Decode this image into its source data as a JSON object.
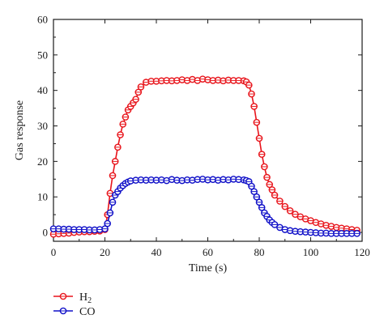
{
  "chart_data": {
    "type": "line",
    "title": "",
    "xlabel": "Time (s)",
    "ylabel": "Gas response",
    "xlim": [
      0,
      120
    ],
    "ylim": [
      0,
      60
    ],
    "x_ticks": [
      0,
      20,
      40,
      60,
      80,
      100,
      120
    ],
    "y_ticks": [
      0,
      10,
      20,
      30,
      40,
      50,
      60
    ],
    "grid": false,
    "legend_position": "bottom-left, below plot",
    "series": [
      {
        "name": "H",
        "name_subscript": "2",
        "color": "#e8141b",
        "marker": "open circle",
        "x": [
          0,
          2,
          4,
          6,
          8,
          10,
          12,
          14,
          16,
          18,
          20,
          21,
          22,
          23,
          24,
          25,
          26,
          27,
          28,
          29,
          30,
          31,
          32,
          33,
          34,
          36,
          38,
          40,
          42,
          44,
          46,
          48,
          50,
          52,
          54,
          56,
          58,
          60,
          62,
          64,
          66,
          68,
          70,
          72,
          74,
          75,
          76,
          77,
          78,
          79,
          80,
          81,
          82,
          83,
          84,
          85,
          86,
          88,
          90,
          92,
          94,
          96,
          98,
          100,
          102,
          104,
          106,
          108,
          110,
          112,
          114,
          116,
          118
        ],
        "y": [
          -0.5,
          -0.4,
          -0.3,
          -0.2,
          0.0,
          0.1,
          0.2,
          0.2,
          0.3,
          0.4,
          0.8,
          5.0,
          11.0,
          16.0,
          20.0,
          24.0,
          27.5,
          30.5,
          32.5,
          34.5,
          35.5,
          36.5,
          37.5,
          39.5,
          41.0,
          42.3,
          42.6,
          42.6,
          42.7,
          42.8,
          42.7,
          42.8,
          43.0,
          42.8,
          43.1,
          42.8,
          43.2,
          43.0,
          42.8,
          42.9,
          42.7,
          42.9,
          42.8,
          42.8,
          42.7,
          42.4,
          41.5,
          39.0,
          35.5,
          31.0,
          26.5,
          22.0,
          18.5,
          15.5,
          13.5,
          12.0,
          10.5,
          8.8,
          7.3,
          6.1,
          5.1,
          4.4,
          3.8,
          3.3,
          2.8,
          2.4,
          2.0,
          1.7,
          1.4,
          1.2,
          1.0,
          0.8,
          0.6
        ]
      },
      {
        "name": "CO",
        "color": "#1010c8",
        "marker": "open circle",
        "x": [
          0,
          2,
          4,
          6,
          8,
          10,
          12,
          14,
          16,
          18,
          20,
          21,
          22,
          23,
          24,
          25,
          26,
          27,
          28,
          29,
          30,
          32,
          34,
          36,
          38,
          40,
          42,
          44,
          46,
          48,
          50,
          52,
          54,
          56,
          58,
          60,
          62,
          64,
          66,
          68,
          70,
          72,
          74,
          75,
          76,
          77,
          78,
          79,
          80,
          81,
          82,
          83,
          84,
          85,
          86,
          88,
          90,
          92,
          94,
          96,
          98,
          100,
          102,
          104,
          106,
          108,
          110,
          112,
          114,
          116,
          118
        ],
        "y": [
          1.0,
          1.0,
          0.9,
          0.9,
          0.8,
          0.8,
          0.8,
          0.7,
          0.7,
          0.8,
          1.0,
          2.5,
          5.5,
          8.5,
          10.5,
          11.5,
          12.5,
          13.2,
          13.8,
          14.2,
          14.5,
          14.7,
          14.8,
          14.7,
          14.8,
          14.7,
          14.8,
          14.6,
          14.9,
          14.7,
          14.6,
          14.8,
          14.7,
          14.9,
          15.0,
          14.8,
          14.9,
          14.7,
          14.9,
          14.8,
          15.0,
          14.9,
          14.8,
          14.6,
          14.3,
          13.0,
          11.5,
          10.0,
          8.5,
          7.0,
          5.5,
          4.5,
          3.5,
          2.8,
          2.2,
          1.4,
          0.8,
          0.5,
          0.3,
          0.2,
          0.1,
          0.0,
          -0.1,
          -0.2,
          -0.2,
          -0.3,
          -0.3,
          -0.3,
          -0.3,
          -0.3,
          -0.3
        ]
      }
    ]
  }
}
